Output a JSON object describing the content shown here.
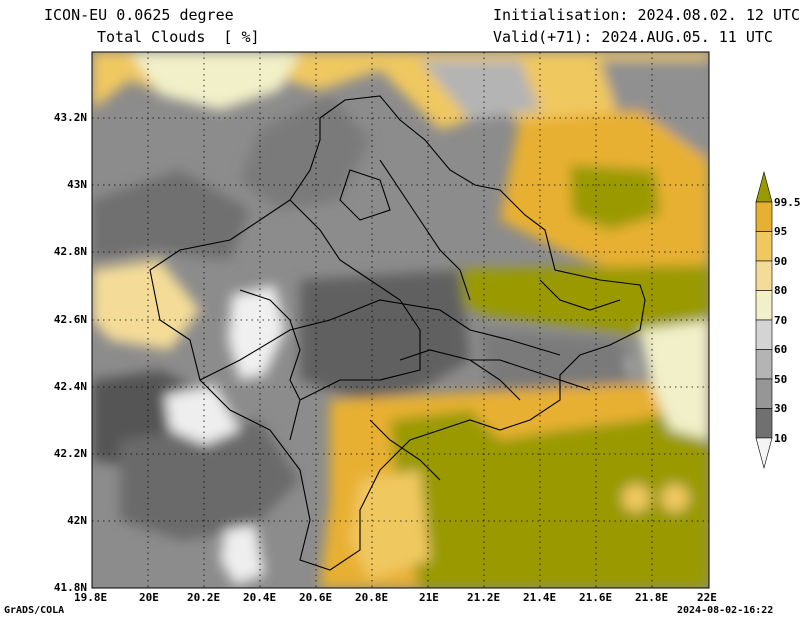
{
  "header": {
    "model": "ICON-EU 0.0625 degree",
    "field": "Total Clouds  [ %]",
    "init": "Initialisation: 2024.08.02. 12 UTC",
    "valid": "Valid(+71): 2024.AUG.05. 11 UTC"
  },
  "axes": {
    "lat_labels": [
      "43.2N",
      "43N",
      "42.8N",
      "42.6N",
      "42.4N",
      "42.2N",
      "42N",
      "41.8N"
    ],
    "lon_labels": [
      "19.8E",
      "20E",
      "20.2E",
      "20.4E",
      "20.6E",
      "20.8E",
      "21E",
      "21.2E",
      "21.4E",
      "21.6E",
      "21.8E",
      "22E"
    ]
  },
  "legend": {
    "labels": [
      "99.5",
      "95",
      "90",
      "80",
      "70",
      "60",
      "50",
      "30",
      "10"
    ],
    "colors": [
      "#9a9a00",
      "#e8b030",
      "#f0c860",
      "#f4dc98",
      "#f2f0c8",
      "#d4d4d4",
      "#b4b4b4",
      "#969696",
      "#707070",
      "#505050",
      "#f4f4f4"
    ]
  },
  "footer": {
    "left": "GrADS/COLA",
    "right": "2024-08-02-16:22"
  }
}
